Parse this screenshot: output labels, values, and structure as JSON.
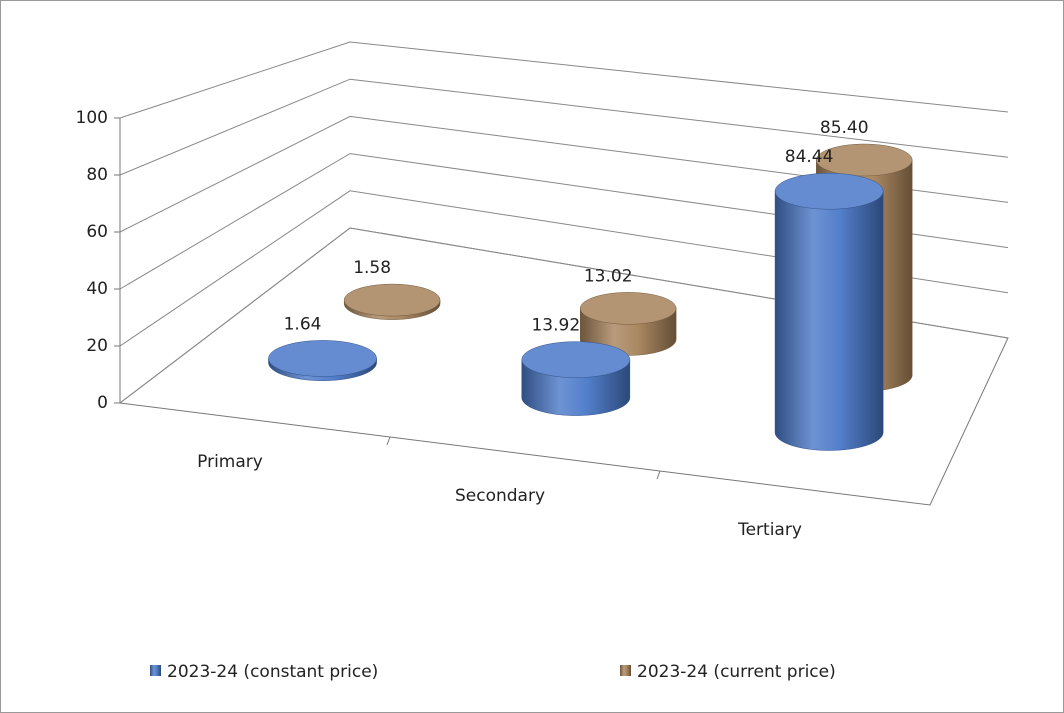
{
  "chart_data": {
    "type": "cylinder3d",
    "categories": [
      "Primary",
      "Secondary",
      "Tertiary"
    ],
    "series": [
      {
        "name": "2023-24 (constant price)",
        "color": "#4a78c8",
        "values": [
          1.64,
          13.92,
          84.44
        ],
        "value_labels": [
          "1.64",
          "13.92",
          "84.44"
        ]
      },
      {
        "name": "2023-24 (current price)",
        "color": "#a6825a",
        "values": [
          1.58,
          13.02,
          85.4
        ],
        "value_labels": [
          "1.58",
          "13.02",
          "85.40"
        ]
      }
    ],
    "ylim": [
      0,
      100
    ],
    "yticks": [
      0,
      20,
      40,
      60,
      80,
      100
    ],
    "grid": true,
    "legend": "bottom"
  }
}
